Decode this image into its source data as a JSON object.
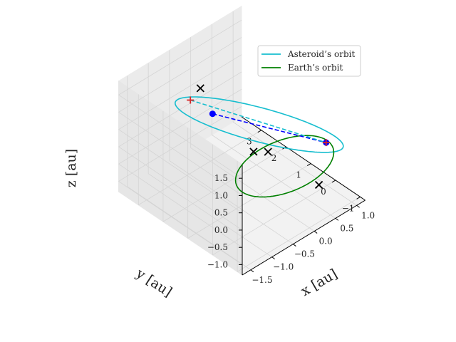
{
  "chart_data": {
    "type": "line3d",
    "title": "",
    "xlabel": "x [au]",
    "ylabel": "y [au]",
    "zlabel": "z [au]",
    "xlim": [
      -1.7,
      1.2
    ],
    "ylim": [
      -1.2,
      3.8
    ],
    "zlim": [
      -1.3,
      1.9
    ],
    "xticks": [
      "-1.5",
      "-1.0",
      "-0.5",
      "0.0",
      "0.5",
      "1.0"
    ],
    "yticks": [
      "-1",
      "0",
      "1",
      "2",
      "3"
    ],
    "zticks": [
      "-1.0",
      "-0.5",
      "0.0",
      "0.5",
      "1.0",
      "1.5"
    ],
    "legend": {
      "location": "top-right",
      "entries": [
        {
          "label": "Asteroid’s orbit",
          "color": "#17becf"
        },
        {
          "label": "Earth’s orbit",
          "color": "#008000"
        }
      ]
    },
    "series": [
      {
        "name": "Asteroid’s orbit",
        "color": "#17becf",
        "style": "solid",
        "shape": "ellipse",
        "center": [
          0.1,
          1.2,
          0.55
        ],
        "semi_axis_u": [
          1.3,
          0.3,
          -1.05
        ],
        "semi_axis_v": [
          -0.35,
          2.2,
          0.0
        ]
      },
      {
        "name": "Earth’s orbit",
        "color": "#008000",
        "style": "solid",
        "shape": "circle",
        "center": [
          0.0,
          0.0,
          0.0
        ],
        "radius": 1.0
      }
    ],
    "lines": [
      {
        "from": [
          0.02,
          2.95,
          0.08
        ],
        "to": [
          0.95,
          -0.05,
          0.0
        ],
        "color": "#0000ff",
        "style": "dashed"
      },
      {
        "from": [
          -0.62,
          2.75,
          1.05
        ],
        "to": [
          0.95,
          -0.05,
          0.0
        ],
        "color": "#17becf",
        "style": "dashed"
      }
    ],
    "markers": [
      {
        "type": "circle",
        "color": "#0000ff",
        "pos": [
          0.02,
          2.95,
          0.08
        ]
      },
      {
        "type": "circle",
        "color": "#0000ff",
        "pos": [
          0.95,
          -0.05,
          0.0
        ]
      },
      {
        "type": "plus",
        "color": "#d62728",
        "pos": [
          -0.62,
          2.75,
          1.05
        ]
      },
      {
        "type": "plus",
        "color": "#d62728",
        "pos": [
          0.95,
          -0.05,
          0.0
        ]
      },
      {
        "type": "x",
        "color": "#000000",
        "pos": [
          -0.5,
          2.55,
          1.4
        ]
      },
      {
        "type": "x",
        "color": "#000000",
        "pos": [
          -0.15,
          1.0,
          0.05
        ]
      },
      {
        "type": "x",
        "color": "#000000",
        "pos": [
          -0.1,
          0.5,
          0.25
        ]
      },
      {
        "type": "x",
        "color": "#000000",
        "pos": [
          0.75,
          -0.1,
          -1.05
        ]
      }
    ]
  }
}
